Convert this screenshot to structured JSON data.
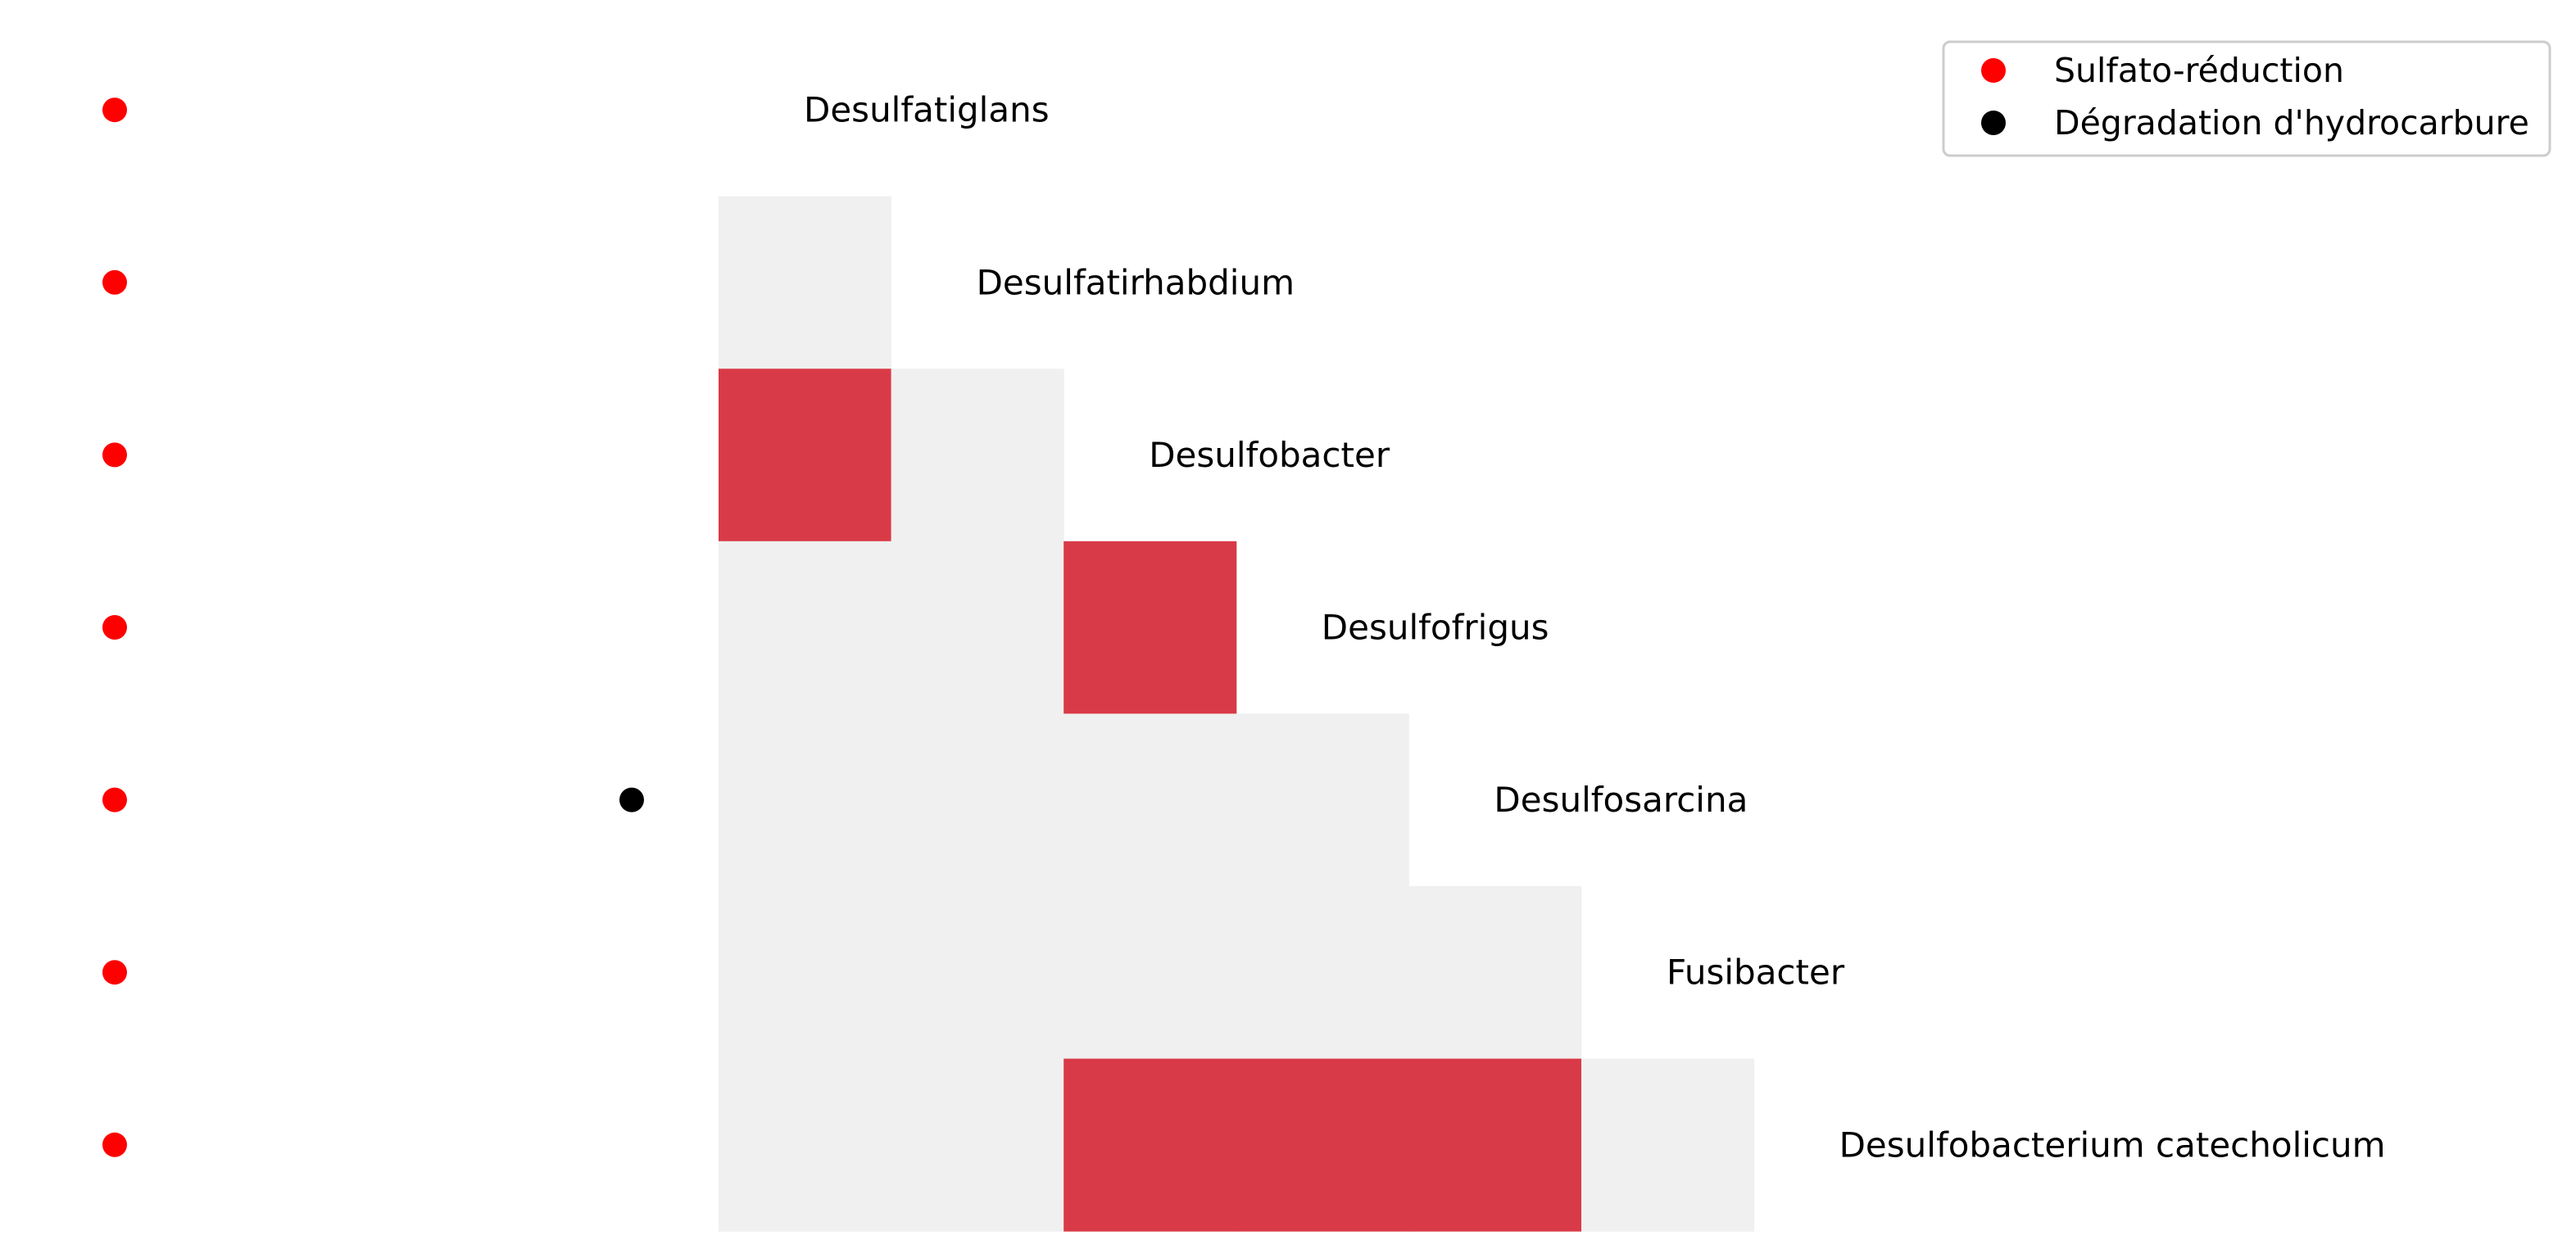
{
  "chart_data": {
    "type": "heatmap",
    "title": "",
    "xlabel": "",
    "ylabel": "",
    "grid": false,
    "legend_position": "top-right",
    "taxa": [
      "Desulfatiglans",
      "Desulfatirhabdium",
      "Desulfobacter",
      "Desulfofrigus",
      "Desulfosarcina",
      "Fusibacter",
      "Desulfobacterium catecholicum"
    ],
    "matrix_shape": "lower-triangular",
    "matrix": [
      [],
      [
        0
      ],
      [
        1,
        0
      ],
      [
        0,
        0,
        1
      ],
      [
        0,
        0,
        0,
        0
      ],
      [
        0,
        0,
        0,
        0,
        0
      ],
      [
        0,
        0,
        1,
        1,
        1,
        0
      ]
    ],
    "cell_colors": {
      "0": "#f0f0f0",
      "1": "#d93a47"
    },
    "traits": [
      {
        "name": "Sulfato-réduction",
        "color": "#ff0000",
        "present": [
          true,
          true,
          true,
          true,
          true,
          true,
          true
        ]
      },
      {
        "name": "Dégradation d'hydrocarbure",
        "color": "#000000",
        "present": [
          false,
          false,
          false,
          false,
          true,
          false,
          false
        ]
      }
    ]
  }
}
